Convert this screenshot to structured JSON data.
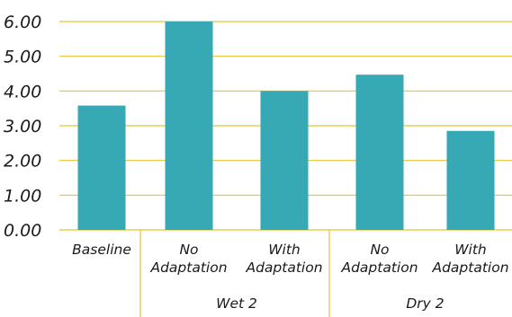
{
  "chart_data": {
    "type": "bar",
    "categories": [
      "Baseline",
      "No Adaptation",
      "With Adaptation",
      "No Adaptation",
      "With Adaptation"
    ],
    "category_label_lines": [
      [
        "Baseline"
      ],
      [
        "No",
        "Adaptation"
      ],
      [
        "With",
        "Adaptation"
      ],
      [
        "No",
        "Adaptation"
      ],
      [
        "With",
        "Adaptation"
      ]
    ],
    "groups": [
      {
        "label": "",
        "categories": [
          0
        ]
      },
      {
        "label": "Wet 2",
        "categories": [
          1,
          2
        ]
      },
      {
        "label": "Dry 2",
        "categories": [
          3,
          4
        ]
      }
    ],
    "values": [
      3.58,
      6.0,
      4.0,
      4.47,
      2.85
    ],
    "ylim": [
      0,
      6
    ],
    "yticks": [
      "0.00",
      "1.00",
      "2.00",
      "3.00",
      "4.00",
      "5.00",
      "6.00"
    ],
    "title": "",
    "xlabel": "",
    "ylabel": "",
    "grid": true,
    "bar_color": "#36A9B5",
    "grid_color": "#E8C233",
    "divider_color": "#E8C233"
  }
}
